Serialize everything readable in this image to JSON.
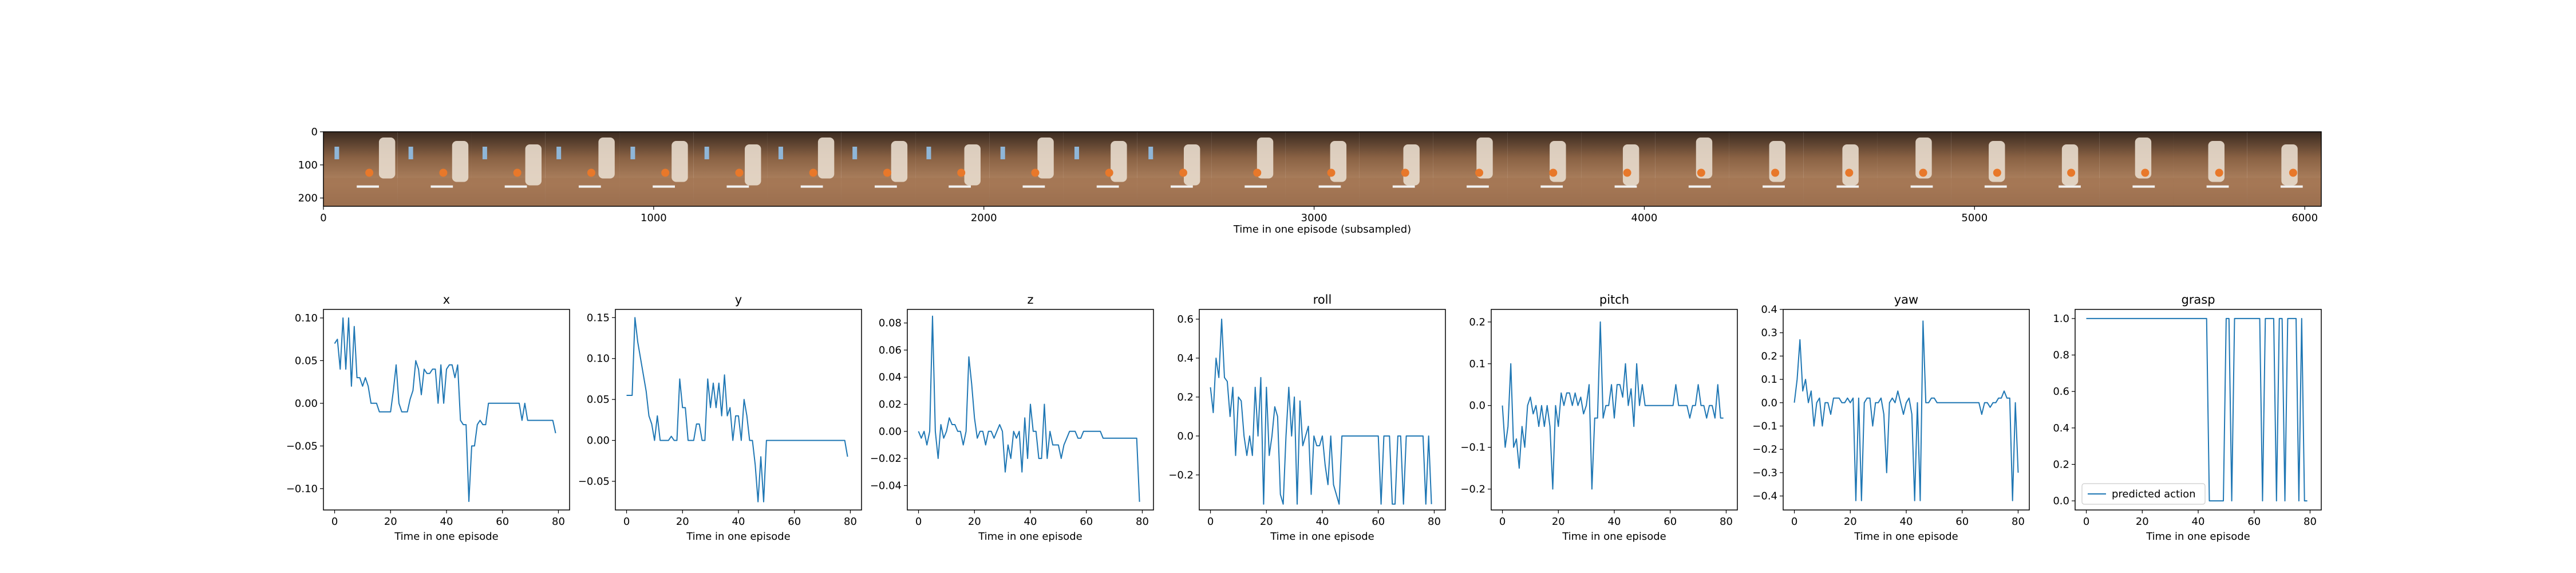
{
  "image_strip": {
    "xlabel": "Time in one episode (subsampled)",
    "xlim": [
      0,
      6050
    ],
    "ylim": [
      225,
      0
    ],
    "xticks": [
      0,
      1000,
      2000,
      3000,
      4000,
      5000,
      6000
    ],
    "yticks": [
      0,
      100,
      200
    ],
    "frame_count": 27
  },
  "chart_data": [
    {
      "type": "line",
      "title": "x",
      "xlabel": "Time in one episode",
      "xlim": [
        -4,
        84
      ],
      "ylim": [
        -0.125,
        0.11
      ],
      "xticks": [
        0,
        20,
        40,
        60,
        80
      ],
      "yticks": [
        -0.1,
        -0.05,
        0.0,
        0.05,
        0.1
      ],
      "ytick_labels": [
        "−0.10",
        "−0.05",
        "0.00",
        "0.05",
        "0.10"
      ],
      "color": "#1f77b4",
      "y": [
        0.07,
        0.075,
        0.04,
        0.1,
        0.04,
        0.1,
        0.02,
        0.09,
        0.03,
        0.03,
        0.02,
        0.03,
        0.02,
        0.0,
        0.0,
        0.0,
        -0.01,
        -0.01,
        -0.01,
        -0.01,
        -0.01,
        0.015,
        0.045,
        0.0,
        -0.01,
        -0.01,
        -0.01,
        0.005,
        0.015,
        0.05,
        0.04,
        0.01,
        0.04,
        0.035,
        0.035,
        0.04,
        0.04,
        0.0,
        0.045,
        0.0,
        0.04,
        0.045,
        0.045,
        0.03,
        0.045,
        -0.02,
        -0.025,
        -0.025,
        -0.115,
        -0.05,
        -0.05,
        -0.025,
        -0.02,
        -0.025,
        -0.025,
        0.0,
        0.0,
        0.0,
        0.0,
        0.0,
        0.0,
        0.0,
        0.0,
        0.0,
        0.0,
        0.0,
        0.0,
        -0.02,
        0.0,
        -0.02,
        -0.02,
        -0.02,
        -0.02,
        -0.02,
        -0.02,
        -0.02,
        -0.02,
        -0.02,
        -0.02,
        -0.035
      ]
    },
    {
      "type": "line",
      "title": "y",
      "xlabel": "Time in one episode",
      "xlim": [
        -4,
        84
      ],
      "ylim": [
        -0.085,
        0.16
      ],
      "xticks": [
        0,
        20,
        40,
        60,
        80
      ],
      "yticks": [
        -0.05,
        0.0,
        0.05,
        0.1,
        0.15
      ],
      "ytick_labels": [
        "−0.05",
        "0.00",
        "0.05",
        "0.10",
        "0.15"
      ],
      "color": "#1f77b4",
      "y": [
        0.055,
        0.055,
        0.055,
        0.15,
        0.12,
        0.1,
        0.08,
        0.06,
        0.03,
        0.02,
        0.0,
        0.03,
        0.0,
        0.0,
        0.0,
        0.0,
        0.005,
        0.0,
        0.0,
        0.075,
        0.04,
        0.04,
        0.0,
        0.0,
        0.0,
        0.02,
        0.02,
        0.0,
        0.0,
        0.075,
        0.04,
        0.07,
        0.04,
        0.07,
        0.03,
        0.08,
        0.03,
        0.04,
        0.0,
        0.03,
        0.03,
        0.0,
        0.05,
        0.03,
        0.0,
        0.0,
        -0.03,
        -0.075,
        -0.02,
        -0.075,
        0.0,
        0.0,
        0.0,
        0.0,
        0.0,
        0.0,
        0.0,
        0.0,
        0.0,
        0.0,
        0.0,
        0.0,
        0.0,
        0.0,
        0.0,
        0.0,
        0.0,
        0.0,
        0.0,
        0.0,
        0.0,
        0.0,
        0.0,
        0.0,
        0.0,
        0.0,
        0.0,
        0.0,
        0.0,
        -0.02
      ]
    },
    {
      "type": "line",
      "title": "z",
      "xlabel": "Time in one episode",
      "xlim": [
        -4,
        84
      ],
      "ylim": [
        -0.058,
        0.09
      ],
      "xticks": [
        0,
        20,
        40,
        60,
        80
      ],
      "yticks": [
        -0.04,
        -0.02,
        0.0,
        0.02,
        0.04,
        0.06,
        0.08
      ],
      "ytick_labels": [
        "−0.04",
        "−0.02",
        "0.00",
        "0.02",
        "0.04",
        "0.06",
        "0.08"
      ],
      "color": "#1f77b4",
      "y": [
        0.0,
        -0.005,
        0.0,
        -0.01,
        0.0,
        0.085,
        0.0,
        -0.02,
        0.005,
        -0.005,
        0.0,
        0.01,
        0.005,
        0.005,
        0.0,
        0.0,
        -0.01,
        0.0,
        0.055,
        0.035,
        0.01,
        -0.005,
        0.0,
        0.0,
        -0.01,
        0.0,
        0.0,
        -0.005,
        0.0,
        0.005,
        0.0,
        -0.03,
        -0.01,
        -0.02,
        0.0,
        -0.005,
        0.0,
        -0.03,
        0.01,
        -0.02,
        0.02,
        0.0,
        0.0,
        -0.02,
        -0.02,
        0.02,
        -0.02,
        0.0,
        -0.01,
        -0.01,
        -0.01,
        -0.02,
        -0.01,
        -0.005,
        0.0,
        0.0,
        0.0,
        -0.005,
        -0.005,
        0.0,
        0.0,
        0.0,
        0.0,
        0.0,
        0.0,
        0.0,
        -0.005,
        -0.005,
        -0.005,
        -0.005,
        -0.005,
        -0.005,
        -0.005,
        -0.005,
        -0.005,
        -0.005,
        -0.005,
        -0.005,
        -0.005,
        -0.052
      ]
    },
    {
      "type": "line",
      "title": "roll",
      "xlabel": "Time in one episode",
      "xlim": [
        -4,
        84
      ],
      "ylim": [
        -0.38,
        0.65
      ],
      "xticks": [
        0,
        20,
        40,
        60,
        80
      ],
      "yticks": [
        -0.2,
        0.0,
        0.2,
        0.4,
        0.6
      ],
      "ytick_labels": [
        "−0.2",
        "0.0",
        "0.2",
        "0.4",
        "0.6"
      ],
      "color": "#1f77b4",
      "y": [
        0.25,
        0.12,
        0.4,
        0.3,
        0.6,
        0.3,
        0.28,
        0.1,
        0.25,
        -0.1,
        0.2,
        0.18,
        0.0,
        -0.1,
        0.0,
        -0.1,
        0.25,
        0.0,
        0.3,
        -0.35,
        0.25,
        -0.1,
        0.0,
        0.15,
        0.1,
        -0.3,
        -0.35,
        0.0,
        0.25,
        0.0,
        0.2,
        -0.35,
        0.18,
        -0.05,
        0.0,
        0.05,
        -0.3,
        0.0,
        -0.05,
        -0.05,
        0.0,
        -0.15,
        -0.25,
        0.0,
        -0.25,
        -0.3,
        -0.35,
        0.0,
        0.0,
        0.0,
        0.0,
        0.0,
        0.0,
        0.0,
        0.0,
        0.0,
        0.0,
        0.0,
        0.0,
        0.0,
        0.0,
        -0.35,
        0.0,
        0.0,
        0.0,
        -0.35,
        -0.35,
        0.0,
        0.0,
        -0.35,
        0.0,
        0.0,
        0.0,
        0.0,
        0.0,
        0.0,
        0.0,
        -0.35,
        0.0,
        -0.35
      ]
    },
    {
      "type": "line",
      "title": "pitch",
      "xlabel": "Time in one episode",
      "xlim": [
        -4,
        84
      ],
      "ylim": [
        -0.25,
        0.23
      ],
      "xticks": [
        0,
        20,
        40,
        60,
        80
      ],
      "yticks": [
        -0.2,
        -0.1,
        0.0,
        0.1,
        0.2
      ],
      "ytick_labels": [
        "−0.2",
        "−0.1",
        "0.0",
        "0.1",
        "0.2"
      ],
      "color": "#1f77b4",
      "y": [
        0.0,
        -0.1,
        -0.05,
        0.1,
        -0.1,
        -0.08,
        -0.15,
        -0.05,
        -0.1,
        0.0,
        0.02,
        -0.02,
        0.0,
        -0.05,
        0.0,
        -0.05,
        0.0,
        -0.05,
        -0.2,
        0.0,
        -0.05,
        0.03,
        0.0,
        0.03,
        0.03,
        0.0,
        0.03,
        0.0,
        0.02,
        -0.02,
        0.0,
        0.05,
        -0.2,
        -0.03,
        -0.03,
        0.2,
        -0.03,
        0.0,
        0.0,
        0.05,
        -0.03,
        0.05,
        0.05,
        0.02,
        0.1,
        0.0,
        0.04,
        -0.05,
        0.1,
        0.0,
        0.05,
        0.0,
        0.0,
        0.0,
        0.0,
        0.0,
        0.0,
        0.0,
        0.0,
        0.0,
        0.0,
        0.0,
        0.05,
        0.0,
        0.0,
        0.0,
        0.0,
        -0.03,
        0.0,
        0.0,
        0.05,
        0.0,
        0.0,
        -0.03,
        0.0,
        0.0,
        -0.03,
        0.05,
        -0.03,
        -0.03
      ]
    },
    {
      "type": "line",
      "title": "yaw",
      "xlabel": "Time in one episode",
      "xlim": [
        -4,
        84
      ],
      "ylim": [
        -0.46,
        0.4
      ],
      "xticks": [
        0,
        20,
        40,
        60,
        80
      ],
      "yticks": [
        -0.4,
        -0.3,
        -0.2,
        -0.1,
        0.0,
        0.1,
        0.2,
        0.3,
        0.4
      ],
      "ytick_labels": [
        "−0.4",
        "−0.3",
        "−0.2",
        "−0.1",
        "0.0",
        "0.1",
        "0.2",
        "0.3",
        "0.4"
      ],
      "color": "#1f77b4",
      "y": [
        0.0,
        0.1,
        0.27,
        0.05,
        0.1,
        0.0,
        0.05,
        -0.1,
        0.0,
        0.02,
        -0.1,
        0.0,
        0.0,
        -0.05,
        0.02,
        0.02,
        0.02,
        0.0,
        0.0,
        0.02,
        0.0,
        0.02,
        -0.42,
        0.02,
        -0.42,
        0.0,
        0.02,
        0.02,
        -0.1,
        0.0,
        0.0,
        0.02,
        -0.05,
        -0.3,
        0.0,
        0.02,
        0.0,
        0.05,
        0.0,
        -0.05,
        0.0,
        0.02,
        -0.05,
        -0.42,
        0.0,
        -0.42,
        0.35,
        0.0,
        0.0,
        0.02,
        0.02,
        0.0,
        0.0,
        0.0,
        0.0,
        0.0,
        0.0,
        0.0,
        0.0,
        0.0,
        0.0,
        0.0,
        0.0,
        0.0,
        0.0,
        0.0,
        0.0,
        -0.05,
        0.0,
        0.0,
        -0.02,
        0.0,
        0.0,
        0.02,
        0.02,
        0.05,
        0.02,
        0.02,
        -0.42,
        0.0,
        -0.3
      ]
    },
    {
      "type": "line",
      "title": "grasp",
      "xlabel": "Time in one episode",
      "xlim": [
        -4,
        84
      ],
      "ylim": [
        -0.05,
        1.05
      ],
      "xticks": [
        0,
        20,
        40,
        60,
        80
      ],
      "yticks": [
        0.0,
        0.2,
        0.4,
        0.6,
        0.8,
        1.0
      ],
      "ytick_labels": [
        "0.0",
        "0.2",
        "0.4",
        "0.6",
        "0.8",
        "1.0"
      ],
      "color": "#1f77b4",
      "legend": "predicted action",
      "legend_loc": "lower left",
      "y": [
        1,
        1,
        1,
        1,
        1,
        1,
        1,
        1,
        1,
        1,
        1,
        1,
        1,
        1,
        1,
        1,
        1,
        1,
        1,
        1,
        1,
        1,
        1,
        1,
        1,
        1,
        1,
        1,
        1,
        1,
        1,
        1,
        1,
        1,
        1,
        1,
        1,
        1,
        1,
        1,
        1,
        1,
        1,
        1,
        0,
        0,
        0,
        0,
        0,
        0,
        1,
        1,
        0,
        1,
        1,
        1,
        1,
        1,
        1,
        1,
        1,
        1,
        1,
        0,
        1,
        1,
        1,
        1,
        0,
        1,
        1,
        0,
        1,
        1,
        1,
        1,
        0,
        1,
        0,
        0
      ]
    }
  ]
}
